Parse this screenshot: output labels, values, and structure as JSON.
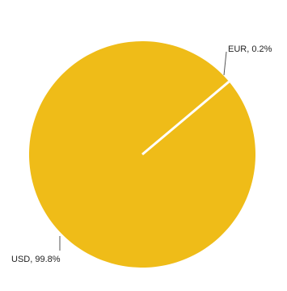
{
  "chart_data": {
    "type": "pie",
    "slices": [
      {
        "label": "USD, 99.8%",
        "value": 99.8,
        "color": "#EFBC18"
      },
      {
        "label": "EUR, 0.2%",
        "value": 0.2,
        "color": "#EFBC18"
      }
    ],
    "legend": "none",
    "separator_color": "#FFFFFF",
    "leader_color": "#555555"
  }
}
